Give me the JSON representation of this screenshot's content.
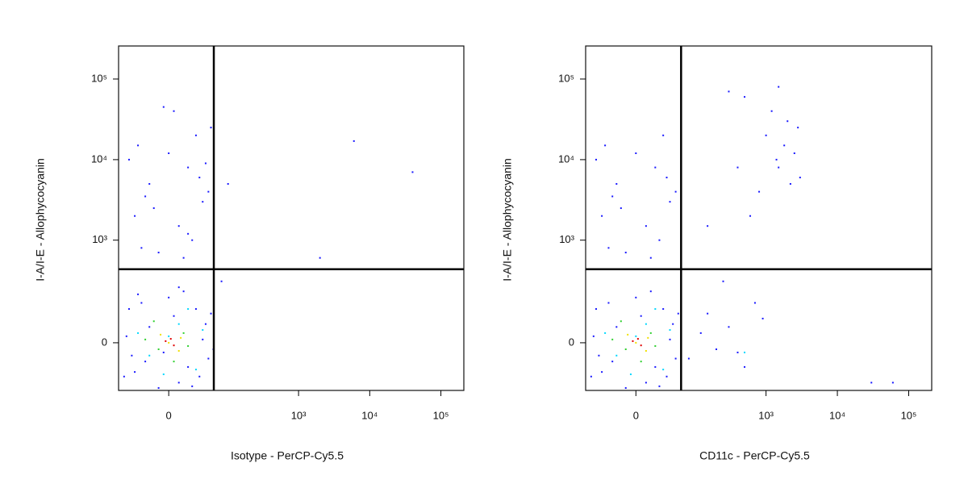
{
  "chart_data": [
    {
      "type": "scatter",
      "xlabel": "Isotype - PerCP-Cy5.5",
      "ylabel": "I-A/I-E - Allophycocyanin",
      "xscale": "biexponential",
      "yscale": "biexponential",
      "xlim": [
        -73,
        210000
      ],
      "ylim": [
        -195,
        257000
      ],
      "xticks": [
        0,
        {
          "value": 1000,
          "label": "10³"
        },
        {
          "value": 10000,
          "label": "10⁴"
        },
        {
          "value": 100000,
          "label": "10⁵"
        }
      ],
      "yticks": [
        0,
        {
          "value": 1000,
          "label": "10³"
        },
        {
          "value": 10000,
          "label": "10⁴"
        },
        {
          "value": 100000,
          "label": "10⁵"
        }
      ],
      "gate_x": 61,
      "gate_y": 430,
      "series": [
        {
          "color": "#1a1aff",
          "x": [
            -40,
            -20,
            10,
            30,
            50,
            -55,
            0,
            20,
            -30,
            45,
            -10,
            35,
            -45,
            55,
            15,
            -25,
            5,
            40,
            -50,
            25,
            60,
            -35,
            -5,
            10,
            -60,
            -30,
            10,
            40,
            -20,
            20,
            -40,
            0,
            30,
            -10,
            50,
            -50,
            15,
            -15,
            35,
            5,
            -35,
            25,
            45,
            -25,
            55,
            -5,
            20,
            2000,
            6000,
            40000,
            80,
            100
          ],
          "y": [
            -100,
            50,
            -150,
            120,
            -50,
            20,
            180,
            -80,
            150,
            60,
            -180,
            -120,
            -40,
            100,
            220,
            -60,
            90,
            10,
            120,
            -170,
            -20,
            200,
            -30,
            250,
            -120,
            800,
            1500,
            3000,
            5000,
            8000,
            2000,
            12000,
            20000,
            700,
            4000,
            10000,
            600,
            2500,
            6000,
            40000,
            15000,
            1000,
            9000,
            3500,
            25000,
            45000,
            1200,
            600,
            17000,
            7000,
            300,
            5000
          ]
        },
        {
          "color": "#00d8ff",
          "x": [
            -20,
            10,
            30,
            -35,
            20,
            -5,
            40,
            0
          ],
          "y": [
            -40,
            60,
            -90,
            30,
            120,
            -110,
            40,
            20
          ]
        },
        {
          "color": "#30d030",
          "x": [
            -10,
            15,
            -25,
            5,
            20,
            -15
          ],
          "y": [
            -20,
            30,
            10,
            -60,
            -10,
            70
          ]
        },
        {
          "color": "#f0e000",
          "x": [
            0,
            -8,
            10,
            12
          ],
          "y": [
            0,
            25,
            -25,
            15
          ]
        },
        {
          "color": "#e00000",
          "x": [
            -3,
            5,
            2
          ],
          "y": [
            5,
            -8,
            12
          ]
        }
      ]
    },
    {
      "type": "scatter",
      "xlabel": "CD11c - PerCP-Cy5.5",
      "ylabel": "I-A/I-E - Allophycocyanin",
      "xscale": "biexponential",
      "yscale": "biexponential",
      "xlim": [
        -73,
        210000
      ],
      "ylim": [
        -195,
        257000
      ],
      "xticks": [
        0,
        {
          "value": 1000,
          "label": "10³"
        },
        {
          "value": 10000,
          "label": "10⁴"
        },
        {
          "value": 100000,
          "label": "10⁵"
        }
      ],
      "yticks": [
        0,
        {
          "value": 1000,
          "label": "10³"
        },
        {
          "value": 10000,
          "label": "10⁴"
        },
        {
          "value": 100000,
          "label": "10⁵"
        }
      ],
      "gate_x": 61,
      "gate_y": 430,
      "series": [
        {
          "color": "#1a1aff",
          "x": [
            -40,
            -20,
            10,
            30,
            50,
            -55,
            0,
            20,
            -30,
            45,
            -10,
            35,
            -45,
            55,
            15,
            -25,
            5,
            40,
            -50,
            25,
            -60,
            -30,
            10,
            40,
            -20,
            20,
            -40,
            0,
            30,
            -10,
            50,
            -50,
            15,
            -15,
            35,
            -35,
            25,
            -25,
            1000,
            1500,
            2000,
            2500,
            3000,
            1200,
            1800,
            2200,
            2800,
            1400,
            80,
            150,
            200,
            300,
            500,
            700,
            120,
            250,
            400,
            900,
            600,
            400,
            150,
            800,
            300,
            500,
            1500,
            30000,
            60000
          ],
          "y": [
            -100,
            50,
            -150,
            120,
            -50,
            20,
            180,
            -80,
            150,
            60,
            -180,
            -120,
            -40,
            100,
            220,
            -60,
            90,
            10,
            120,
            -170,
            -120,
            800,
            1500,
            3000,
            5000,
            8000,
            2000,
            12000,
            20000,
            700,
            4000,
            10000,
            600,
            2500,
            6000,
            15000,
            1000,
            3500,
            20000,
            8000,
            30000,
            12000,
            6000,
            40000,
            15000,
            5000,
            25000,
            10000,
            -50,
            100,
            -20,
            50,
            -80,
            150,
            30,
            300,
            -30,
            80,
            2000,
            8000,
            1500,
            4000,
            70000,
            60000,
            80000,
            -150,
            -150
          ]
        },
        {
          "color": "#00d8ff",
          "x": [
            -20,
            10,
            30,
            -35,
            20,
            -5,
            40,
            0,
            500
          ],
          "y": [
            -40,
            60,
            -90,
            30,
            120,
            -110,
            40,
            20,
            -30
          ]
        },
        {
          "color": "#30d030",
          "x": [
            -10,
            15,
            -25,
            5,
            20,
            -15
          ],
          "y": [
            -20,
            30,
            10,
            -60,
            -10,
            70
          ]
        },
        {
          "color": "#f0e000",
          "x": [
            0,
            -8,
            10,
            12
          ],
          "y": [
            0,
            25,
            -25,
            15
          ]
        },
        {
          "color": "#e00000",
          "x": [
            -3,
            5,
            2
          ],
          "y": [
            5,
            -8,
            12
          ]
        }
      ]
    }
  ]
}
